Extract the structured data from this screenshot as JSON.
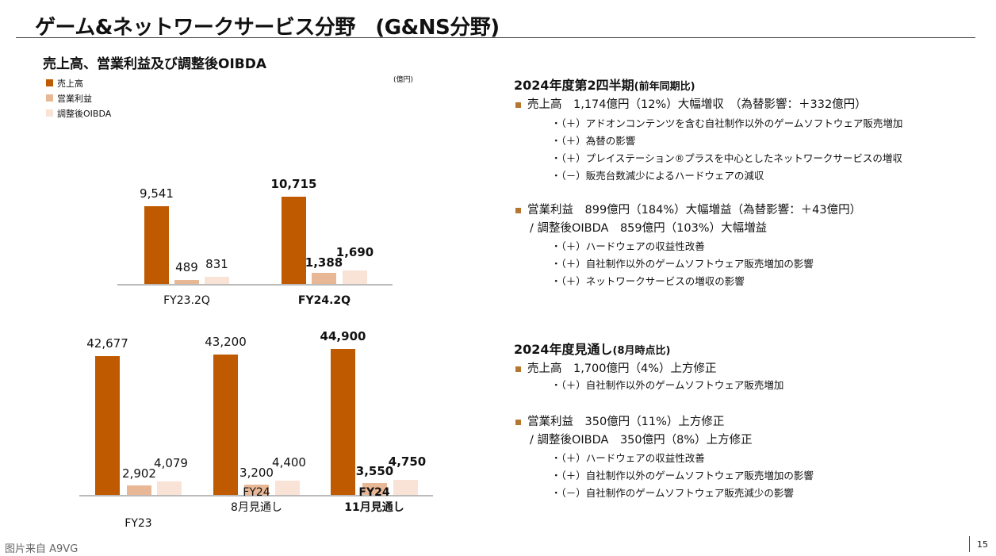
{
  "title": "ゲーム&ネットワークサービス分野　(G&NS分野)",
  "chart_section_title": "売上高、営業利益及び調整後OIBDA",
  "colors": {
    "sales": "#C05A00",
    "operating_income": "#E8B796",
    "oibda": "#F9E3D6",
    "bullet": "#B5772F"
  },
  "chart_data": [
    {
      "type": "bar",
      "unit": "(億円)",
      "legend": [
        "売上高",
        "営業利益",
        "調整後OIBDA"
      ],
      "legend_position": "top-left",
      "categories": [
        "FY23.2Q",
        "FY24.2Q"
      ],
      "series": [
        {
          "name": "売上高",
          "values": [
            9541,
            10715
          ]
        },
        {
          "name": "営業利益",
          "values": [
            489,
            1388
          ]
        },
        {
          "name": "調整後OIBDA",
          "values": [
            831,
            1690
          ]
        }
      ],
      "labels": [
        [
          "9,541",
          "489",
          "831"
        ],
        [
          "10,715",
          "1,388",
          "1,690"
        ]
      ]
    },
    {
      "type": "bar",
      "categories": [
        "FY23",
        "FY24\n8月見通し",
        "FY24\n11月見通し"
      ],
      "series": [
        {
          "name": "売上高",
          "values": [
            42677,
            43200,
            44900
          ]
        },
        {
          "name": "営業利益",
          "values": [
            2902,
            3200,
            3550
          ]
        },
        {
          "name": "調整後OIBDA",
          "values": [
            4079,
            4400,
            4750
          ]
        }
      ],
      "labels": [
        [
          "42,677",
          "2,902",
          "4,079"
        ],
        [
          "43,200",
          "3,200",
          "4,400"
        ],
        [
          "44,900",
          "3,550",
          "4,750"
        ]
      ]
    }
  ],
  "q2": {
    "heading": "2024年度第2四半期",
    "heading_note": "(前年同期比)",
    "sales_line": "売上高　1,174億円（12%）大幅増収　（為替影響：＋332億円）",
    "sales_items": [
      "・（＋）アドオンコンテンツを含む自社制作以外のゲームソフトウェア販売増加",
      "・（＋）為替の影響",
      "・（＋）プレイステーション®プラスを中心としたネットワークサービスの増収",
      "・（－）販売台数減少によるハードウェアの減収"
    ],
    "profit_line": "営業利益　899億円（184%）大幅増益（為替影響：＋43億円）",
    "oibda_line": "/ 調整後OIBDA　859億円（103%）大幅増益",
    "profit_items": [
      "・（＋）ハードウェアの収益性改善",
      "・（＋）自社制作以外のゲームソフトウェア販売増加の影響",
      "・（＋）ネットワークサービスの増収の影響"
    ]
  },
  "forecast": {
    "heading": "2024年度見通し",
    "heading_note": "(8月時点比)",
    "sales_line": "売上高　1,700億円（4%）上方修正",
    "sales_items": [
      "・（＋）自社制作以外のゲームソフトウェア販売増加"
    ],
    "profit_line": "営業利益　350億円（11%）上方修正",
    "oibda_line": "/ 調整後OIBDA　350億円（8%）上方修正",
    "profit_items": [
      "・（＋）ハードウェアの収益性改善",
      "・（＋）自社制作以外のゲームソフトウェア販売増加の影響",
      "・（－）自社制作のゲームソフトウェア販売減少の影響"
    ]
  },
  "credit": "图片来自 A9VG",
  "page_number": "15"
}
